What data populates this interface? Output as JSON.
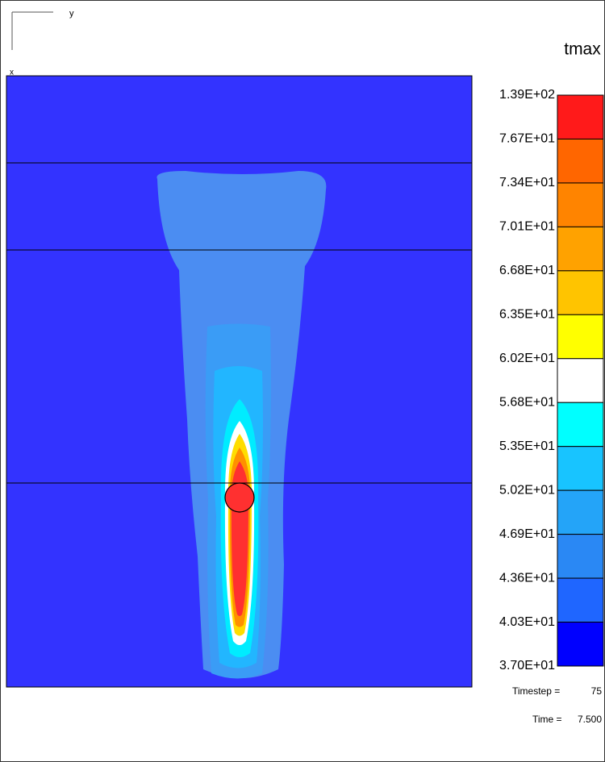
{
  "view": {
    "axis_y": "y",
    "axis_x": "x"
  },
  "legend": {
    "title": "tmax",
    "labels": [
      "1.39E+02",
      "7.67E+01",
      "7.34E+01",
      "7.01E+01",
      "6.68E+01",
      "6.35E+01",
      "6.02E+01",
      "5.68E+01",
      "5.35E+01",
      "5.02E+01",
      "4.69E+01",
      "4.36E+01",
      "4.03E+01",
      "3.70E+01"
    ],
    "colors": [
      "#ff1a1a",
      "#ff6600",
      "#ff8400",
      "#ffa200",
      "#ffc400",
      "#ffff00",
      "#ffffff",
      "#00ffff",
      "#18c4ff",
      "#24a4f8",
      "#2a88f4",
      "#1f66ff",
      "#0000ff"
    ]
  },
  "footer": {
    "timestep_label": "Timestep =",
    "timestep": "75",
    "time_label": "Time =",
    "time": "7.500"
  }
}
